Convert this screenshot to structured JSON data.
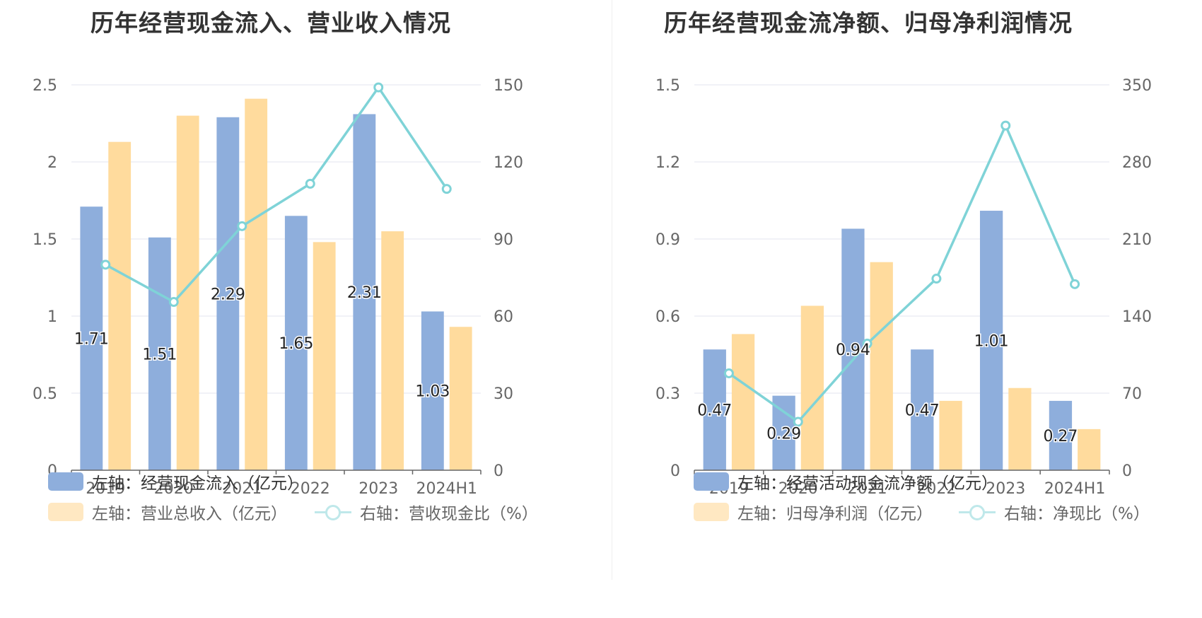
{
  "colors": {
    "bar1": "#8eaedc",
    "bar2": "#ffdb9d",
    "line": "#7fd3d7",
    "legend_bar2": "#ffe8c2",
    "legend_line": "#bfe8ea",
    "grid": "#e3e6ef",
    "axis": "#666666"
  },
  "chart_data": [
    {
      "type": "bar",
      "title": "历年经营现金流入、营业收入情况",
      "categories": [
        "2019",
        "2020",
        "2021",
        "2022",
        "2023",
        "2024H1"
      ],
      "left_ticks": [
        "0",
        "0.5",
        "1",
        "1.5",
        "2",
        "2.5"
      ],
      "right_ticks": [
        "0",
        "30",
        "60",
        "90",
        "120",
        "150"
      ],
      "ylim_left": [
        0,
        2.5
      ],
      "ylim_right": [
        0,
        150
      ],
      "grid": true,
      "legend_position": "bottom",
      "series": [
        {
          "name": "左轴：经营现金流入（亿元）",
          "axis": "left",
          "type": "bar",
          "values": [
            1.71,
            1.51,
            2.29,
            1.65,
            2.31,
            1.03
          ],
          "labels": [
            "1.71",
            "1.51",
            "2.29",
            "1.65",
            "2.31",
            "1.03"
          ]
        },
        {
          "name": "左轴：营业总收入（亿元）",
          "axis": "left",
          "type": "bar",
          "values": [
            2.13,
            2.3,
            2.41,
            1.48,
            1.55,
            0.93
          ]
        },
        {
          "name": "右轴：营收现金比（%）",
          "axis": "right",
          "type": "line",
          "values": [
            80.0,
            65.5,
            95.0,
            111.5,
            149.0,
            109.5
          ]
        }
      ]
    },
    {
      "type": "bar",
      "title": "历年经营现金流净额、归母净利润情况",
      "categories": [
        "2019",
        "2020",
        "2021",
        "2022",
        "2023",
        "2024H1"
      ],
      "left_ticks": [
        "0",
        "0.3",
        "0.6",
        "0.9",
        "1.2",
        "1.5"
      ],
      "right_ticks": [
        "0",
        "70",
        "140",
        "210",
        "280",
        "350"
      ],
      "ylim_left": [
        0,
        1.5
      ],
      "ylim_right": [
        0,
        350
      ],
      "grid": true,
      "legend_position": "bottom",
      "series": [
        {
          "name": "左轴：经营活动现金流净额（亿元）",
          "axis": "left",
          "type": "bar",
          "values": [
            0.47,
            0.29,
            0.94,
            0.47,
            1.01,
            0.27
          ],
          "labels": [
            "0.47",
            "0.29",
            "0.94",
            "0.47",
            "1.01",
            "0.27"
          ]
        },
        {
          "name": "左轴：归母净利润（亿元）",
          "axis": "left",
          "type": "bar",
          "values": [
            0.53,
            0.64,
            0.81,
            0.27,
            0.32,
            0.16
          ]
        },
        {
          "name": "右轴：净现比（%）",
          "axis": "right",
          "type": "line",
          "values": [
            88.0,
            44.0,
            115.0,
            174.0,
            313.0,
            169.0
          ]
        }
      ]
    }
  ]
}
